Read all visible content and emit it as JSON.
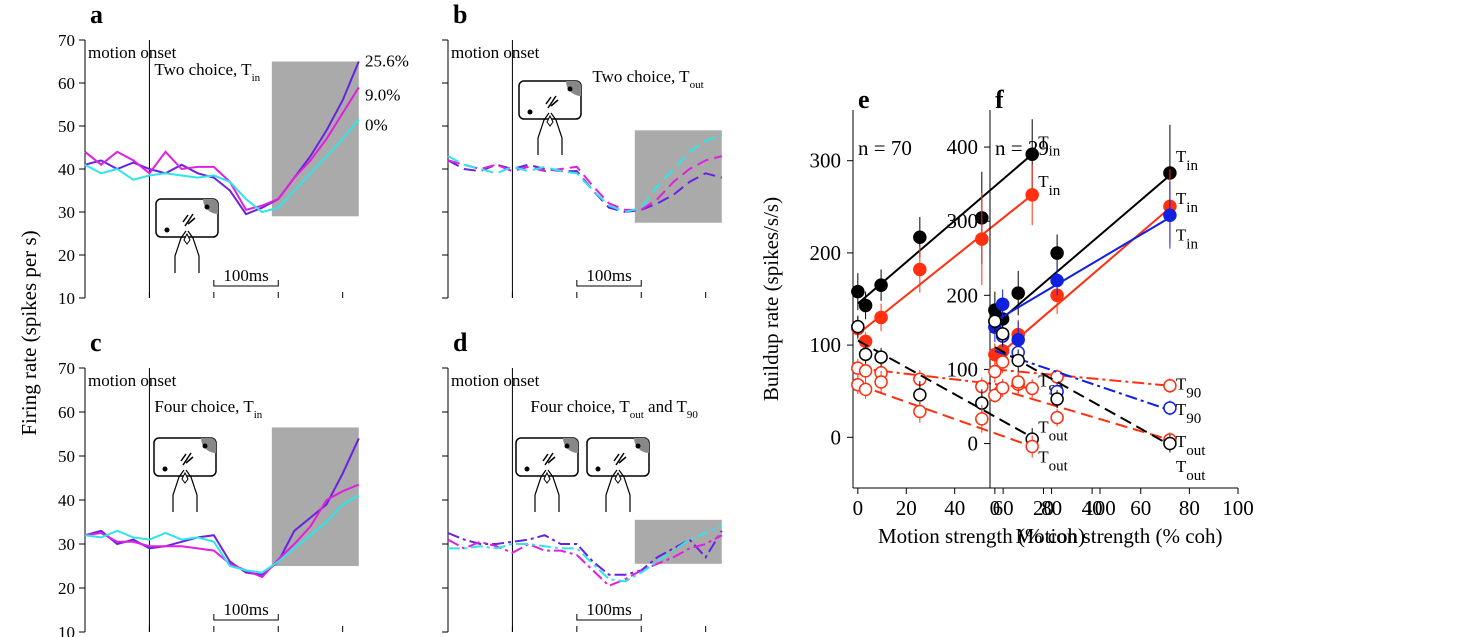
{
  "chart_data": [
    {
      "type": "line",
      "label": "a",
      "ylabel": "Firing rate (spikes per s)",
      "annotation": "motion onset",
      "subtitle": [
        {
          "text": "Two choice, T"
        },
        {
          "sub": "in"
        }
      ],
      "scalebar": {
        "label": "100ms",
        "value": 100
      },
      "onset": 0,
      "line_style": "solid",
      "ytick_labels": true,
      "shade": {
        "x": [
          190,
          325
        ],
        "y": [
          29,
          65
        ]
      },
      "x": [
        -100,
        -75,
        -50,
        -25,
        0,
        25,
        50,
        75,
        100,
        125,
        150,
        175,
        200,
        225,
        250,
        275,
        300,
        325
      ],
      "xlim": [
        -100,
        330
      ],
      "xticks": [
        -100,
        0,
        100,
        200,
        300
      ],
      "ylim": [
        10,
        70
      ],
      "yticks": [
        10,
        20,
        30,
        40,
        50,
        60,
        70
      ],
      "series": [
        {
          "name": "25.6%",
          "color": "#6a22e0",
          "values": [
            41,
            42,
            40,
            41.5,
            40,
            39,
            41,
            39,
            38,
            35,
            29.5,
            31,
            33,
            38,
            43,
            49,
            56,
            65
          ]
        },
        {
          "name": "9.0%",
          "color": "#e020e0",
          "values": [
            44,
            41,
            44,
            42,
            39,
            44,
            40,
            40.5,
            40.5,
            37,
            30.5,
            31.5,
            33,
            38,
            42,
            47,
            53,
            59
          ]
        },
        {
          "name": "0%",
          "color": "#30e4e8",
          "values": [
            41,
            39,
            40,
            37.5,
            38.5,
            39,
            38.5,
            38,
            38.5,
            37,
            33,
            30,
            31,
            35,
            39,
            43,
            47,
            51.5
          ]
        }
      ]
    },
    {
      "type": "line",
      "label": "b",
      "annotation": "motion onset",
      "subtitle": [
        {
          "text": "Two choice, T"
        },
        {
          "sub": "out"
        }
      ],
      "scalebar": {
        "label": "100ms",
        "value": 100
      },
      "onset": 0,
      "line_style": "dashed",
      "ytick_labels": false,
      "shade": {
        "x": [
          190,
          325
        ],
        "y": [
          27.5,
          49
        ]
      },
      "x": [
        -100,
        -75,
        -50,
        -25,
        0,
        25,
        50,
        75,
        100,
        125,
        150,
        175,
        200,
        225,
        250,
        275,
        300,
        325
      ],
      "xlim": [
        -100,
        330
      ],
      "xticks": [
        -100,
        0,
        100,
        200,
        300
      ],
      "ylim": [
        10,
        70
      ],
      "yticks": [
        10,
        20,
        30,
        40,
        50,
        60,
        70
      ],
      "series": [
        {
          "color": "#6a22e0",
          "values": [
            42,
            40,
            39.5,
            41,
            40,
            41,
            40,
            39.5,
            39.5,
            35,
            31,
            30,
            30.5,
            32,
            34,
            37,
            39,
            38
          ]
        },
        {
          "color": "#e020e0",
          "values": [
            42,
            41,
            40,
            41,
            39.5,
            40.5,
            39.5,
            40,
            40.5,
            36,
            32,
            30.5,
            30.5,
            33,
            37,
            40,
            42,
            43
          ]
        },
        {
          "color": "#30e4e8",
          "values": [
            43,
            41,
            40,
            39,
            40.5,
            39.5,
            40.5,
            39.5,
            39,
            35,
            31.5,
            30,
            31,
            36,
            40,
            44,
            46.5,
            48
          ]
        }
      ]
    },
    {
      "type": "line",
      "label": "c",
      "annotation": "motion onset",
      "subtitle": [
        {
          "text": "Four choice, T"
        },
        {
          "sub": "in"
        }
      ],
      "scalebar": {
        "label": "100ms",
        "value": 100
      },
      "onset": 0,
      "line_style": "solid",
      "ytick_labels": true,
      "shade": {
        "x": [
          190,
          325
        ],
        "y": [
          25,
          56.5
        ]
      },
      "x": [
        -100,
        -75,
        -50,
        -25,
        0,
        25,
        50,
        75,
        100,
        125,
        150,
        175,
        200,
        225,
        250,
        275,
        300,
        325
      ],
      "xlim": [
        -100,
        330
      ],
      "xticks": [
        -100,
        0,
        100,
        200,
        300
      ],
      "ylim": [
        10,
        70
      ],
      "yticks": [
        10,
        20,
        30,
        40,
        50,
        60,
        70
      ],
      "series": [
        {
          "color": "#6a22e0",
          "values": [
            32,
            33,
            30,
            31,
            29,
            29.5,
            30.5,
            31.5,
            32,
            26,
            23.5,
            23,
            26,
            33,
            36,
            39,
            46,
            54
          ]
        },
        {
          "color": "#e020e0",
          "values": [
            32,
            32.5,
            30.5,
            30.5,
            29.5,
            29.5,
            29.5,
            29,
            28.5,
            25.5,
            24,
            22.5,
            26.5,
            30,
            34,
            40,
            42,
            43.5
          ]
        },
        {
          "color": "#30e4e8",
          "values": [
            32,
            31.5,
            33,
            31.5,
            31,
            32.5,
            31,
            31.5,
            30.5,
            25,
            24,
            23.5,
            26,
            29,
            32,
            35,
            39,
            41
          ]
        }
      ]
    },
    {
      "type": "line",
      "label": "d",
      "annotation": "motion onset",
      "subtitle": [
        {
          "text": "Four choice, T"
        },
        {
          "sub": "out"
        },
        {
          "text": " and T"
        },
        {
          "sub": "90"
        }
      ],
      "scalebar": {
        "label": "100ms",
        "value": 100
      },
      "onset": 0,
      "line_style": "dashdot",
      "ytick_labels": false,
      "shade": {
        "x": [
          190,
          325
        ],
        "y": [
          25.5,
          35.5
        ]
      },
      "x": [
        -100,
        -75,
        -50,
        -25,
        0,
        25,
        50,
        75,
        100,
        125,
        150,
        175,
        200,
        225,
        250,
        275,
        300,
        325
      ],
      "xlim": [
        -100,
        330
      ],
      "xticks": [
        -100,
        0,
        100,
        200,
        300
      ],
      "ylim": [
        10,
        70
      ],
      "yticks": [
        10,
        20,
        30,
        40,
        50,
        60,
        70
      ],
      "series": [
        {
          "color": "#6a22e0",
          "values": [
            32.5,
            31,
            30,
            30,
            30.5,
            31,
            32,
            30,
            30,
            26,
            23,
            23,
            24,
            27,
            29,
            31,
            27,
            33
          ]
        },
        {
          "color": "#e020e0",
          "values": [
            31,
            29,
            30.5,
            29.5,
            28,
            30,
            28.5,
            28.5,
            27.5,
            24,
            20.5,
            22,
            24,
            25.5,
            27,
            29,
            30,
            32
          ]
        },
        {
          "color": "#30e4e8",
          "values": [
            29,
            29,
            29.5,
            29,
            30,
            30,
            29.5,
            29,
            29,
            25.5,
            22,
            21.5,
            23.5,
            26,
            28.5,
            31,
            32.5,
            34
          ]
        }
      ]
    },
    {
      "type": "scatter",
      "label": "e",
      "annotation": "n = 70",
      "ylabel": "Buildup rate (spikes/s/s)",
      "xlabel": "Motion strength (% coh)",
      "x": [
        0,
        3.2,
        9.6,
        25.6,
        51.2,
        72
      ],
      "fit_x": [
        0,
        72
      ],
      "xlim": [
        -2,
        100
      ],
      "xticks": [
        0,
        20,
        40,
        60,
        80,
        100
      ],
      "ylim": [
        -55,
        355
      ],
      "yticks": [
        0,
        100,
        200,
        300
      ],
      "series": [
        {
          "label": [
            {
              "text": "T"
            },
            {
              "sub": "in"
            }
          ],
          "color": "#000000",
          "filled": true,
          "line_style": "solid",
          "values": [
            158,
            143,
            165,
            217,
            238,
            307
          ],
          "errors": [
            20,
            15,
            17,
            22,
            50,
            38
          ],
          "fit": [
            145,
            307
          ]
        },
        {
          "label": [
            {
              "text": "T"
            },
            {
              "sub": "in"
            }
          ],
          "color": "#ff3010",
          "filled": true,
          "line_style": "solid",
          "values": [
            118,
            104,
            130,
            182,
            215,
            263
          ],
          "errors": [
            12,
            10,
            15,
            25,
            50,
            33
          ],
          "fit": [
            112,
            263
          ]
        },
        {
          "label": [
            {
              "text": "T"
            },
            {
              "sub": "90"
            }
          ],
          "color": "#ff3010",
          "filled": false,
          "line_style": "dashdot",
          "values": [
            75,
            72,
            70,
            63,
            55,
            53
          ],
          "errors": [
            10,
            10,
            10,
            10,
            10,
            10
          ],
          "fit": [
            75,
            53
          ]
        },
        {
          "label": [
            {
              "text": "T"
            },
            {
              "sub": "out"
            }
          ],
          "color": "#000000",
          "filled": false,
          "line_style": "dashed",
          "values": [
            120,
            90,
            87,
            46,
            37,
            -2
          ],
          "errors": [
            12,
            10,
            10,
            15,
            15,
            12
          ],
          "fit": [
            105,
            0
          ]
        },
        {
          "label": [
            {
              "text": "T"
            },
            {
              "sub": "out"
            }
          ],
          "color": "#ff3010",
          "filled": false,
          "line_style": "dashed",
          "values": [
            57,
            52,
            60,
            28,
            20,
            -10
          ],
          "errors": [
            10,
            10,
            12,
            12,
            15,
            12
          ],
          "fit": [
            57,
            -10
          ]
        }
      ]
    },
    {
      "type": "scatter",
      "label": "f",
      "annotation": "n = 29",
      "xlabel": "Motion strength (% coh)",
      "x": [
        0,
        3.2,
        9.6,
        25.6,
        72
      ],
      "fit_x": [
        0,
        72
      ],
      "xlim": [
        -2,
        100
      ],
      "xticks": [
        0,
        20,
        40,
        60,
        80,
        100
      ],
      "ylim": [
        -60,
        450
      ],
      "yticks": [
        0,
        100,
        200,
        300,
        400
      ],
      "series": [
        {
          "label": [
            {
              "text": "T"
            },
            {
              "sub": "in"
            }
          ],
          "color": "#000000",
          "filled": true,
          "line_style": "solid",
          "values": [
            180,
            168,
            203,
            257,
            365
          ],
          "errors": [
            25,
            20,
            30,
            25,
            65
          ],
          "fit": [
            160,
            362
          ]
        },
        {
          "label": [
            {
              "text": "T"
            },
            {
              "sub": "in"
            }
          ],
          "color": "#ff3010",
          "filled": true,
          "line_style": "solid",
          "values": [
            120,
            125,
            147,
            200,
            320
          ],
          "errors": [
            15,
            15,
            20,
            25,
            50
          ],
          "fit": [
            115,
            318
          ]
        },
        {
          "label": [
            {
              "text": "T"
            },
            {
              "sub": "in"
            }
          ],
          "color": "#1020e0",
          "filled": true,
          "line_style": "solid",
          "values": [
            157,
            188,
            140,
            220,
            308
          ],
          "errors": [
            20,
            20,
            25,
            20,
            45
          ],
          "fit": [
            165,
            305
          ]
        },
        {
          "label": [
            {
              "text": "T"
            },
            {
              "sub": "90"
            }
          ],
          "color": "#ff3010",
          "filled": false,
          "line_style": "dashdot",
          "values": [
            97,
            110,
            80,
            90,
            78
          ],
          "errors": [
            15,
            15,
            15,
            10,
            10
          ],
          "fit": [
            100,
            78
          ]
        },
        {
          "label": [
            {
              "text": "T"
            },
            {
              "sub": "90"
            }
          ],
          "color": "#1020e0",
          "filled": false,
          "line_style": "dashdot",
          "values": [
            165,
            145,
            123,
            70,
            48
          ],
          "errors": [
            15,
            15,
            15,
            12,
            10
          ],
          "fit": [
            125,
            45
          ]
        },
        {
          "label": [
            {
              "text": "T"
            },
            {
              "sub": "out"
            }
          ],
          "color": "#ff3010",
          "filled": false,
          "line_style": "dashed",
          "values": [
            65,
            75,
            83,
            35,
            5
          ],
          "errors": [
            10,
            12,
            15,
            12,
            10
          ],
          "fit": [
            75,
            5
          ]
        },
        {
          "label": [
            {
              "text": "T"
            },
            {
              "sub": "out"
            }
          ],
          "color": "#000000",
          "filled": false,
          "line_style": "dashed",
          "values": [
            165,
            148,
            112,
            60,
            0
          ],
          "errors": [
            15,
            15,
            15,
            12,
            12
          ],
          "fit": [
            130,
            -2
          ]
        }
      ]
    }
  ]
}
